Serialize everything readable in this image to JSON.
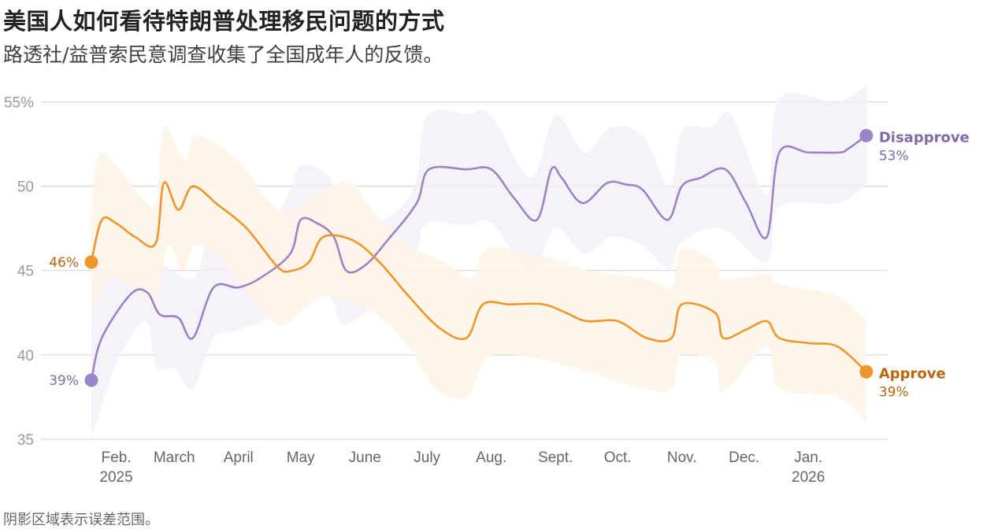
{
  "title": "美国人如何看待特朗普处理移民问题的方式",
  "subtitle": "路透社/益普索民意调查收集了全国成年人的反馈。",
  "footnote": "阴影区域表示误差范围。",
  "chart_data": {
    "type": "line",
    "title": "美国人如何看待特朗普处理移民问题的方式",
    "subtitle": "路透社/益普索民意调查收集了全国成年人的反馈。",
    "note": "阴影区域表示误差范围。",
    "ylim": [
      35,
      56
    ],
    "yticks": [
      35,
      40,
      45,
      50,
      55
    ],
    "ytick_labels": [
      "35",
      "40",
      "45",
      "50",
      "55%"
    ],
    "grid": true,
    "x_ticks": [
      {
        "date": "2025-02-01",
        "label": "Feb.",
        "sub": "2025"
      },
      {
        "date": "2025-03-01",
        "label": "March",
        "sub": ""
      },
      {
        "date": "2025-04-01",
        "label": "April",
        "sub": ""
      },
      {
        "date": "2025-05-01",
        "label": "May",
        "sub": ""
      },
      {
        "date": "2025-06-01",
        "label": "June",
        "sub": ""
      },
      {
        "date": "2025-07-01",
        "label": "July",
        "sub": ""
      },
      {
        "date": "2025-08-01",
        "label": "Aug.",
        "sub": ""
      },
      {
        "date": "2025-09-01",
        "label": "Sept.",
        "sub": ""
      },
      {
        "date": "2025-10-01",
        "label": "Oct.",
        "sub": ""
      },
      {
        "date": "2025-11-01",
        "label": "Nov.",
        "sub": ""
      },
      {
        "date": "2025-12-01",
        "label": "Dec.",
        "sub": ""
      },
      {
        "date": "2026-01-01",
        "label": "Jan.",
        "sub": "2026"
      }
    ],
    "x_range": [
      "2025-01-20",
      "2026-02-03"
    ],
    "series": [
      {
        "name": "Disapprove",
        "color": "#9b85c4",
        "band_color": "#f3f0f8",
        "label_color": "#7f6aa6",
        "start_label": "39%",
        "end_label": "53%",
        "points": [
          [
            "2025-01-20",
            38.5
          ],
          [
            "2025-01-25",
            41.0
          ],
          [
            "2025-02-08",
            43.6
          ],
          [
            "2025-02-16",
            43.7
          ],
          [
            "2025-02-22",
            42.4
          ],
          [
            "2025-03-03",
            42.2
          ],
          [
            "2025-03-10",
            41.0
          ],
          [
            "2025-03-20",
            44.0
          ],
          [
            "2025-04-01",
            44.0
          ],
          [
            "2025-04-12",
            44.6
          ],
          [
            "2025-04-26",
            46.0
          ],
          [
            "2025-05-01",
            48.0
          ],
          [
            "2025-05-09",
            47.8
          ],
          [
            "2025-05-17",
            47.0
          ],
          [
            "2025-05-23",
            45.0
          ],
          [
            "2025-06-01",
            45.3
          ],
          [
            "2025-06-12",
            46.8
          ],
          [
            "2025-06-26",
            49.0
          ],
          [
            "2025-07-02",
            51.0
          ],
          [
            "2025-07-20",
            51.0
          ],
          [
            "2025-08-01",
            51.0
          ],
          [
            "2025-08-12",
            49.3
          ],
          [
            "2025-08-23",
            48.0
          ],
          [
            "2025-08-30",
            51.0
          ],
          [
            "2025-09-04",
            50.5
          ],
          [
            "2025-09-14",
            49.0
          ],
          [
            "2025-09-26",
            50.2
          ],
          [
            "2025-10-05",
            50.1
          ],
          [
            "2025-10-13",
            49.8
          ],
          [
            "2025-10-25",
            48.0
          ],
          [
            "2025-11-01",
            50.0
          ],
          [
            "2025-11-10",
            50.5
          ],
          [
            "2025-11-22",
            51.0
          ],
          [
            "2025-12-02",
            49.0
          ],
          [
            "2025-12-12",
            47.0
          ],
          [
            "2025-12-18",
            52.0
          ],
          [
            "2026-01-01",
            52.0
          ],
          [
            "2026-01-16",
            52.0
          ],
          [
            "2026-01-20",
            52.2
          ],
          [
            "2026-01-29",
            53.0
          ]
        ],
        "band_upper": [
          [
            "2025-01-20",
            44.0
          ],
          [
            "2025-02-01",
            45.0
          ],
          [
            "2025-02-20",
            45.5
          ],
          [
            "2025-03-10",
            44.5
          ],
          [
            "2025-03-20",
            47.5
          ],
          [
            "2025-04-10",
            47.0
          ],
          [
            "2025-04-25",
            49.5
          ],
          [
            "2025-05-01",
            51.2
          ],
          [
            "2025-05-15",
            50.5
          ],
          [
            "2025-05-22",
            47.5
          ],
          [
            "2025-06-10",
            48.0
          ],
          [
            "2025-06-25",
            50.0
          ],
          [
            "2025-07-01",
            54.2
          ],
          [
            "2025-07-20",
            54.3
          ],
          [
            "2025-08-01",
            54.2
          ],
          [
            "2025-08-20",
            50.5
          ],
          [
            "2025-09-01",
            54.2
          ],
          [
            "2025-09-15",
            52.0
          ],
          [
            "2025-09-28",
            53.5
          ],
          [
            "2025-10-13",
            53.0
          ],
          [
            "2025-10-26",
            50.0
          ],
          [
            "2025-11-01",
            53.3
          ],
          [
            "2025-11-15",
            53.5
          ],
          [
            "2025-11-25",
            54.2
          ],
          [
            "2025-12-12",
            49.5
          ],
          [
            "2025-12-18",
            55.2
          ],
          [
            "2026-01-15",
            55.0
          ],
          [
            "2026-01-29",
            56.0
          ]
        ],
        "band_lower": [
          [
            "2025-01-20",
            35.0
          ],
          [
            "2025-02-01",
            39.5
          ],
          [
            "2025-02-15",
            42.0
          ],
          [
            "2025-02-20",
            39.3
          ],
          [
            "2025-03-01",
            39.2
          ],
          [
            "2025-03-10",
            38.0
          ],
          [
            "2025-03-20",
            41.0
          ],
          [
            "2025-04-01",
            41.5
          ],
          [
            "2025-04-20",
            42.5
          ],
          [
            "2025-05-01",
            44.5
          ],
          [
            "2025-05-15",
            43.5
          ],
          [
            "2025-05-22",
            41.8
          ],
          [
            "2025-06-10",
            43.5
          ],
          [
            "2025-06-25",
            46.0
          ],
          [
            "2025-07-01",
            47.8
          ],
          [
            "2025-07-20",
            47.7
          ],
          [
            "2025-08-01",
            47.8
          ],
          [
            "2025-08-20",
            45.0
          ],
          [
            "2025-09-01",
            47.5
          ],
          [
            "2025-09-15",
            46.0
          ],
          [
            "2025-09-28",
            47.0
          ],
          [
            "2025-10-13",
            46.5
          ],
          [
            "2025-10-26",
            45.0
          ],
          [
            "2025-11-01",
            46.7
          ],
          [
            "2025-11-20",
            47.5
          ],
          [
            "2025-12-12",
            45.5
          ],
          [
            "2025-12-18",
            48.8
          ],
          [
            "2026-01-15",
            49.0
          ],
          [
            "2026-01-29",
            50.0
          ]
        ]
      },
      {
        "name": "Approve",
        "color": "#f0952c",
        "band_color": "#fff4e8",
        "label_color": "#b8650e",
        "start_label": "46%",
        "end_label": "39%",
        "points": [
          [
            "2025-01-20",
            45.5
          ],
          [
            "2025-01-25",
            48.0
          ],
          [
            "2025-02-01",
            47.8
          ],
          [
            "2025-02-10",
            47.0
          ],
          [
            "2025-02-20",
            46.6
          ],
          [
            "2025-02-24",
            50.2
          ],
          [
            "2025-03-03",
            48.6
          ],
          [
            "2025-03-10",
            50.0
          ],
          [
            "2025-03-22",
            48.9
          ],
          [
            "2025-04-05",
            47.5
          ],
          [
            "2025-04-20",
            45.2
          ],
          [
            "2025-04-27",
            45.0
          ],
          [
            "2025-05-05",
            45.5
          ],
          [
            "2025-05-12",
            47.0
          ],
          [
            "2025-05-26",
            46.8
          ],
          [
            "2025-06-08",
            45.5
          ],
          [
            "2025-06-22",
            43.5
          ],
          [
            "2025-07-07",
            41.6
          ],
          [
            "2025-07-20",
            41.0
          ],
          [
            "2025-07-28",
            43.0
          ],
          [
            "2025-08-10",
            43.0
          ],
          [
            "2025-08-26",
            43.0
          ],
          [
            "2025-09-06",
            42.5
          ],
          [
            "2025-09-16",
            42.0
          ],
          [
            "2025-10-01",
            42.0
          ],
          [
            "2025-10-15",
            41.0
          ],
          [
            "2025-10-27",
            41.0
          ],
          [
            "2025-11-01",
            43.0
          ],
          [
            "2025-11-17",
            42.5
          ],
          [
            "2025-11-21",
            41.0
          ],
          [
            "2025-12-02",
            41.5
          ],
          [
            "2025-12-12",
            42.0
          ],
          [
            "2025-12-18",
            41.0
          ],
          [
            "2026-01-01",
            40.7
          ],
          [
            "2026-01-15",
            40.5
          ],
          [
            "2026-01-29",
            39.0
          ]
        ],
        "band_upper": [
          [
            "2025-01-20",
            49.0
          ],
          [
            "2025-01-25",
            52.0
          ],
          [
            "2025-02-12",
            49.5
          ],
          [
            "2025-02-20",
            49.0
          ],
          [
            "2025-02-24",
            53.5
          ],
          [
            "2025-03-06",
            51.5
          ],
          [
            "2025-03-12",
            53.0
          ],
          [
            "2025-04-01",
            51.5
          ],
          [
            "2025-04-22",
            48.5
          ],
          [
            "2025-05-15",
            50.0
          ],
          [
            "2025-05-26",
            50.2
          ],
          [
            "2025-06-05",
            48.5
          ],
          [
            "2025-06-22",
            46.5
          ],
          [
            "2025-07-10",
            45.5
          ],
          [
            "2025-07-22",
            44.5
          ],
          [
            "2025-07-30",
            46.3
          ],
          [
            "2025-08-20",
            46.0
          ],
          [
            "2025-09-06",
            45.5
          ],
          [
            "2025-09-16",
            45.0
          ],
          [
            "2025-10-15",
            44.5
          ],
          [
            "2025-10-27",
            44.0
          ],
          [
            "2025-11-01",
            46.3
          ],
          [
            "2025-11-17",
            45.5
          ],
          [
            "2025-11-21",
            44.5
          ],
          [
            "2025-12-12",
            44.8
          ],
          [
            "2025-12-18",
            44.2
          ],
          [
            "2026-01-15",
            43.5
          ],
          [
            "2026-01-29",
            42.0
          ]
        ],
        "band_lower": [
          [
            "2025-01-20",
            42.0
          ],
          [
            "2025-01-28",
            44.5
          ],
          [
            "2025-02-10",
            44.0
          ],
          [
            "2025-02-20",
            43.0
          ],
          [
            "2025-02-26",
            46.5
          ],
          [
            "2025-03-05",
            45.0
          ],
          [
            "2025-03-12",
            46.5
          ],
          [
            "2025-03-28",
            45.0
          ],
          [
            "2025-04-20",
            41.8
          ],
          [
            "2025-05-05",
            43.0
          ],
          [
            "2025-05-15",
            43.5
          ],
          [
            "2025-06-05",
            42.5
          ],
          [
            "2025-06-22",
            40.5
          ],
          [
            "2025-07-05",
            38.0
          ],
          [
            "2025-07-20",
            37.5
          ],
          [
            "2025-07-30",
            39.8
          ],
          [
            "2025-08-15",
            40.0
          ],
          [
            "2025-09-02",
            39.5
          ],
          [
            "2025-09-16",
            39.0
          ],
          [
            "2025-10-13",
            38.0
          ],
          [
            "2025-10-27",
            38.0
          ],
          [
            "2025-11-01",
            40.0
          ],
          [
            "2025-11-17",
            39.5
          ],
          [
            "2025-11-21",
            37.8
          ],
          [
            "2025-12-12",
            40.5
          ],
          [
            "2025-12-18",
            38.0
          ],
          [
            "2026-01-15",
            37.5
          ],
          [
            "2026-01-29",
            36.0
          ]
        ]
      }
    ]
  }
}
